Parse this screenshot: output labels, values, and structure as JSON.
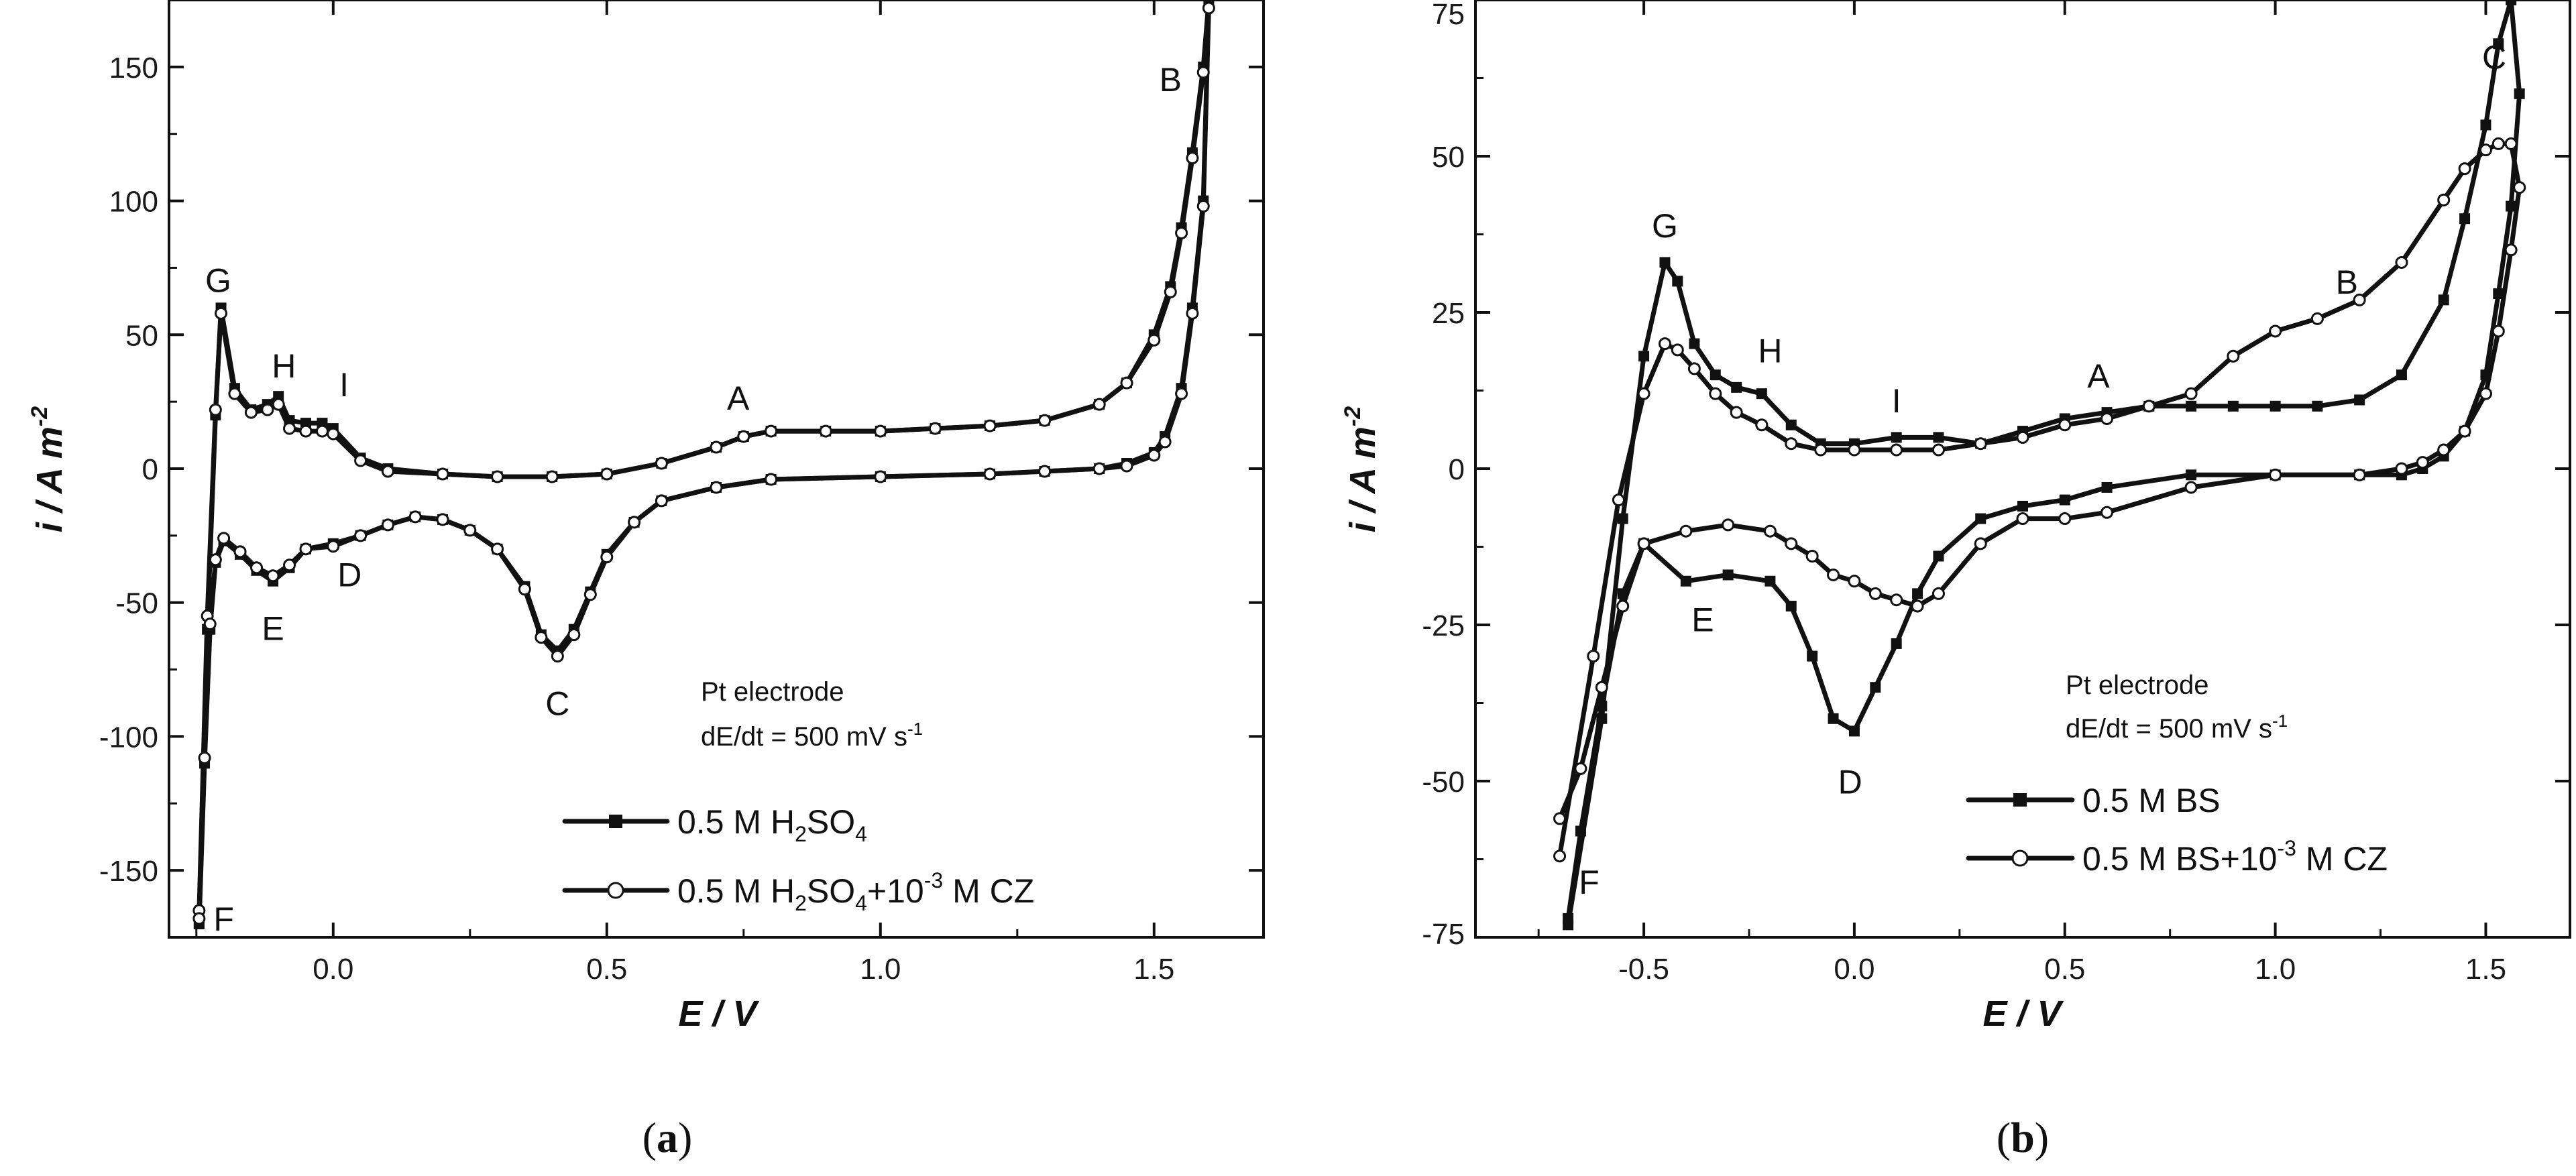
{
  "chart_data": [
    {
      "id": "a",
      "type": "line",
      "caption_letter": "a",
      "xlabel": "E / V",
      "ylabel_main": "i / A m",
      "ylabel_exp": "-2",
      "xlim": [
        -0.3,
        1.7
      ],
      "ylim": [
        -175,
        175
      ],
      "xticks": [
        0.0,
        0.5,
        1.0,
        1.5
      ],
      "xtick_labels": [
        "0.0",
        "0.5",
        "1.0",
        "1.5"
      ],
      "yticks": [
        -150,
        -100,
        -50,
        0,
        50,
        100,
        150
      ],
      "ytick_labels": [
        "-150",
        "-100",
        "-50",
        "0",
        "50",
        "100",
        "150"
      ],
      "annotations": [
        {
          "text": "G",
          "x": -0.21,
          "y": 66
        },
        {
          "text": "H",
          "x": -0.09,
          "y": 34
        },
        {
          "text": "I",
          "x": 0.02,
          "y": 27
        },
        {
          "text": "A",
          "x": 0.74,
          "y": 22
        },
        {
          "text": "B",
          "x": 1.53,
          "y": 141
        },
        {
          "text": "C",
          "x": 0.41,
          "y": -92
        },
        {
          "text": "D",
          "x": 0.03,
          "y": -44
        },
        {
          "text": "E",
          "x": -0.11,
          "y": -64
        },
        {
          "text": "F",
          "x": -0.2,
          "y": -175
        }
      ],
      "note_line1": "Pt electrode",
      "note_line2_main": "dE/dt = 500 mV s",
      "note_line2_exp": "-1",
      "legend": [
        {
          "marker": "square",
          "parts": [
            "0.5 M H",
            "2",
            "SO",
            "4"
          ]
        },
        {
          "marker": "circle",
          "parts": [
            "0.5 M H",
            "2",
            "SO",
            "4",
            "+10",
            "-3",
            " M CZ"
          ]
        }
      ],
      "series": [
        {
          "name": "0.5 M H2SO4",
          "marker": "square",
          "x": [
            -0.245,
            -0.23,
            -0.215,
            -0.205,
            -0.18,
            -0.15,
            -0.12,
            -0.1,
            -0.08,
            -0.05,
            -0.02,
            0.0,
            0.05,
            0.1,
            0.2,
            0.3,
            0.4,
            0.5,
            0.6,
            0.7,
            0.75,
            0.8,
            0.9,
            1.0,
            1.1,
            1.2,
            1.3,
            1.4,
            1.45,
            1.5,
            1.53,
            1.55,
            1.57,
            1.59,
            1.6,
            1.59,
            1.57,
            1.55,
            1.52,
            1.5,
            1.45,
            1.4,
            1.3,
            1.2,
            1.0,
            0.8,
            0.7,
            0.6,
            0.55,
            0.5,
            0.47,
            0.44,
            0.41,
            0.38,
            0.35,
            0.3,
            0.25,
            0.2,
            0.15,
            0.1,
            0.05,
            0.0,
            -0.05,
            -0.08,
            -0.11,
            -0.14,
            -0.17,
            -0.2,
            -0.215,
            -0.225,
            -0.235,
            -0.245
          ],
          "y": [
            -170,
            -60,
            20,
            60,
            30,
            22,
            24,
            27,
            18,
            17,
            17,
            15,
            4,
            0,
            -2,
            -3,
            -3,
            -2,
            2,
            8,
            12,
            14,
            14,
            14,
            15,
            16,
            18,
            24,
            32,
            50,
            68,
            90,
            118,
            150,
            175,
            100,
            60,
            30,
            12,
            6,
            2,
            0,
            -1,
            -2,
            -3,
            -4,
            -7,
            -12,
            -20,
            -32,
            -46,
            -60,
            -68,
            -62,
            -44,
            -30,
            -23,
            -19,
            -18,
            -21,
            -25,
            -28,
            -30,
            -37,
            -42,
            -38,
            -32,
            -27,
            -35,
            -60,
            -110,
            -170
          ]
        },
        {
          "name": "0.5 M H2SO4+10-3 M CZ",
          "marker": "circle",
          "x": [
            -0.245,
            -0.23,
            -0.215,
            -0.205,
            -0.18,
            -0.15,
            -0.12,
            -0.1,
            -0.08,
            -0.05,
            -0.02,
            0.0,
            0.05,
            0.1,
            0.2,
            0.3,
            0.4,
            0.5,
            0.6,
            0.7,
            0.75,
            0.8,
            0.9,
            1.0,
            1.1,
            1.2,
            1.3,
            1.4,
            1.45,
            1.5,
            1.53,
            1.55,
            1.57,
            1.59,
            1.6,
            1.59,
            1.57,
            1.55,
            1.52,
            1.5,
            1.45,
            1.4,
            1.3,
            1.2,
            1.0,
            0.8,
            0.7,
            0.6,
            0.55,
            0.5,
            0.47,
            0.44,
            0.41,
            0.38,
            0.35,
            0.3,
            0.25,
            0.2,
            0.15,
            0.1,
            0.05,
            0.0,
            -0.05,
            -0.08,
            -0.11,
            -0.14,
            -0.17,
            -0.2,
            -0.215,
            -0.225,
            -0.235,
            -0.245
          ],
          "y": [
            -165,
            -55,
            22,
            58,
            28,
            21,
            22,
            24,
            15,
            14,
            14,
            13,
            3,
            -1,
            -2,
            -3,
            -3,
            -2,
            2,
            8,
            12,
            14,
            14,
            14,
            15,
            16,
            18,
            24,
            32,
            48,
            66,
            88,
            116,
            148,
            172,
            98,
            58,
            28,
            10,
            5,
            1,
            0,
            -1,
            -2,
            -3,
            -4,
            -7,
            -12,
            -20,
            -33,
            -47,
            -62,
            -70,
            -63,
            -45,
            -30,
            -23,
            -19,
            -18,
            -21,
            -25,
            -29,
            -30,
            -36,
            -40,
            -37,
            -31,
            -26,
            -34,
            -58,
            -108,
            -168
          ]
        }
      ]
    },
    {
      "id": "b",
      "type": "line",
      "caption_letter": "b",
      "xlabel": "E / V",
      "ylabel_main": "i / A m",
      "ylabel_exp": "-2",
      "xlim": [
        -0.9,
        1.7
      ],
      "ylim": [
        -75,
        75
      ],
      "xticks": [
        -0.5,
        0.0,
        0.5,
        1.0,
        1.5
      ],
      "xtick_labels": [
        "-0.5",
        "0.0",
        "0.5",
        "1.0",
        "1.5"
      ],
      "yticks": [
        -75,
        -50,
        -25,
        0,
        25,
        50,
        75
      ],
      "ytick_labels": [
        "-75",
        "-50",
        "-25",
        "0",
        "25",
        "50",
        "75"
      ],
      "annotations": [
        {
          "text": "G",
          "x": -0.45,
          "y": 37
        },
        {
          "text": "H",
          "x": -0.2,
          "y": 17
        },
        {
          "text": "I",
          "x": 0.1,
          "y": 9
        },
        {
          "text": "A",
          "x": 0.58,
          "y": 13
        },
        {
          "text": "B",
          "x": 1.17,
          "y": 28
        },
        {
          "text": "C",
          "x": 1.52,
          "y": 64
        },
        {
          "text": "D",
          "x": -0.01,
          "y": -52
        },
        {
          "text": "E",
          "x": -0.36,
          "y": -26
        },
        {
          "text": "F",
          "x": -0.63,
          "y": -68
        }
      ],
      "note_line1": "Pt electrode",
      "note_line2_main": "dE/dt = 500 mV s",
      "note_line2_exp": "-1",
      "legend": [
        {
          "marker": "square",
          "parts": [
            "0.5 M BS"
          ]
        },
        {
          "marker": "circle",
          "parts": [
            "0.5 M BS+10",
            "-3",
            " M CZ"
          ]
        }
      ],
      "series": [
        {
          "name": "0.5 M BS",
          "marker": "square",
          "x": [
            -0.68,
            -0.6,
            -0.55,
            -0.5,
            -0.45,
            -0.42,
            -0.38,
            -0.33,
            -0.28,
            -0.22,
            -0.15,
            -0.08,
            0.0,
            0.1,
            0.2,
            0.3,
            0.4,
            0.5,
            0.6,
            0.7,
            0.8,
            0.9,
            1.0,
            1.1,
            1.2,
            1.3,
            1.4,
            1.45,
            1.5,
            1.53,
            1.56,
            1.58,
            1.56,
            1.53,
            1.5,
            1.45,
            1.4,
            1.35,
            1.3,
            1.2,
            1.0,
            0.8,
            0.6,
            0.5,
            0.4,
            0.3,
            0.2,
            0.15,
            0.1,
            0.05,
            0.0,
            -0.05,
            -0.1,
            -0.15,
            -0.2,
            -0.3,
            -0.4,
            -0.5,
            -0.55,
            -0.6,
            -0.65,
            -0.68
          ],
          "y": [
            -73,
            -40,
            -8,
            18,
            33,
            30,
            20,
            15,
            13,
            12,
            7,
            4,
            4,
            5,
            5,
            4,
            6,
            8,
            9,
            10,
            10,
            10,
            10,
            10,
            11,
            15,
            27,
            40,
            55,
            68,
            80,
            60,
            42,
            28,
            15,
            6,
            2,
            0,
            -1,
            -1,
            -1,
            -1,
            -3,
            -5,
            -6,
            -8,
            -14,
            -20,
            -28,
            -35,
            -42,
            -40,
            -30,
            -22,
            -18,
            -17,
            -18,
            -12,
            -20,
            -38,
            -58,
            -72
          ]
        },
        {
          "name": "0.5 M BS+10-3 M CZ",
          "marker": "circle",
          "x": [
            -0.7,
            -0.62,
            -0.56,
            -0.5,
            -0.45,
            -0.42,
            -0.38,
            -0.33,
            -0.28,
            -0.22,
            -0.15,
            -0.08,
            0.0,
            0.1,
            0.2,
            0.3,
            0.4,
            0.5,
            0.6,
            0.7,
            0.8,
            0.9,
            1.0,
            1.1,
            1.2,
            1.3,
            1.4,
            1.45,
            1.5,
            1.53,
            1.56,
            1.58,
            1.56,
            1.53,
            1.5,
            1.45,
            1.4,
            1.35,
            1.3,
            1.2,
            1.0,
            0.8,
            0.6,
            0.5,
            0.4,
            0.3,
            0.2,
            0.15,
            0.1,
            0.05,
            0.0,
            -0.05,
            -0.1,
            -0.15,
            -0.2,
            -0.3,
            -0.4,
            -0.5,
            -0.55,
            -0.6,
            -0.65,
            -0.7
          ],
          "y": [
            -62,
            -30,
            -5,
            12,
            20,
            19,
            16,
            12,
            9,
            7,
            4,
            3,
            3,
            3,
            3,
            4,
            5,
            7,
            8,
            10,
            12,
            18,
            22,
            24,
            27,
            33,
            43,
            48,
            51,
            52,
            52,
            45,
            35,
            22,
            12,
            6,
            3,
            1,
            0,
            -1,
            -1,
            -3,
            -7,
            -8,
            -8,
            -12,
            -20,
            -22,
            -21,
            -20,
            -18,
            -17,
            -14,
            -12,
            -10,
            -9,
            -10,
            -12,
            -22,
            -35,
            -48,
            -56
          ]
        }
      ]
    }
  ]
}
